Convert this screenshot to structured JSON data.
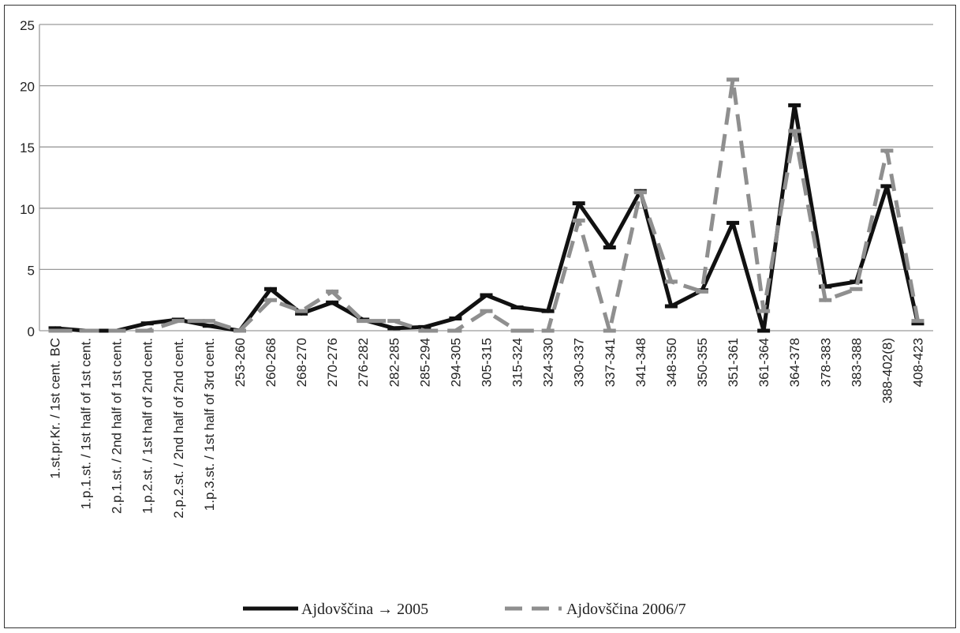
{
  "chart_data": {
    "type": "line",
    "title": "",
    "xlabel": "",
    "ylabel": "",
    "ylim": [
      0,
      25
    ],
    "yticks": [
      0,
      5,
      10,
      15,
      20,
      25
    ],
    "grid": "horizontal",
    "legend_position": "bottom-center",
    "categories": [
      "1.st.pr.Kr. / 1st cent. BC",
      "1.p.1.st. / 1st half of 1st cent.",
      "2.p.1.st. / 2nd half of 1st cent.",
      "1.p.2.st. / 1st half of 2nd cent.",
      "2.p.2.st. / 2nd half of 2nd cent.",
      "1.p.3.st. / 1st half of 3rd cent.",
      "253-260",
      "260-268",
      "268-270",
      "270-276",
      "276-282",
      "282-285",
      "285-294",
      "294-305",
      "305-315",
      "315-324",
      "324-330",
      "330-337",
      "337-341",
      "341-348",
      "348-350",
      "350-355",
      "351-361",
      "361-364",
      "364-378",
      "378-383",
      "383-388",
      "388-402(8)",
      "408-423"
    ],
    "series": [
      {
        "name": "Ajdovščina → 2005",
        "color": "#111111",
        "dash": "solid",
        "values": [
          0.2,
          0,
          0,
          0.6,
          0.9,
          0.4,
          0,
          3.4,
          1.4,
          2.3,
          0.9,
          0.2,
          0.3,
          1.0,
          2.9,
          1.9,
          1.6,
          10.4,
          6.8,
          11.4,
          2.0,
          3.3,
          8.8,
          0,
          18.4,
          3.6,
          4.0,
          11.8,
          0.6
        ]
      },
      {
        "name": "Ajdovščina 2006/7",
        "color": "#8f8f8f",
        "dash": "dashed",
        "values": [
          0,
          0,
          0,
          0,
          0.8,
          0.8,
          0,
          2.5,
          1.6,
          3.2,
          0.8,
          0.8,
          0,
          0,
          1.6,
          0,
          0,
          9.0,
          0,
          11.3,
          4.0,
          3.2,
          20.5,
          1.6,
          16.3,
          2.5,
          3.4,
          14.7,
          0.8
        ]
      }
    ]
  }
}
